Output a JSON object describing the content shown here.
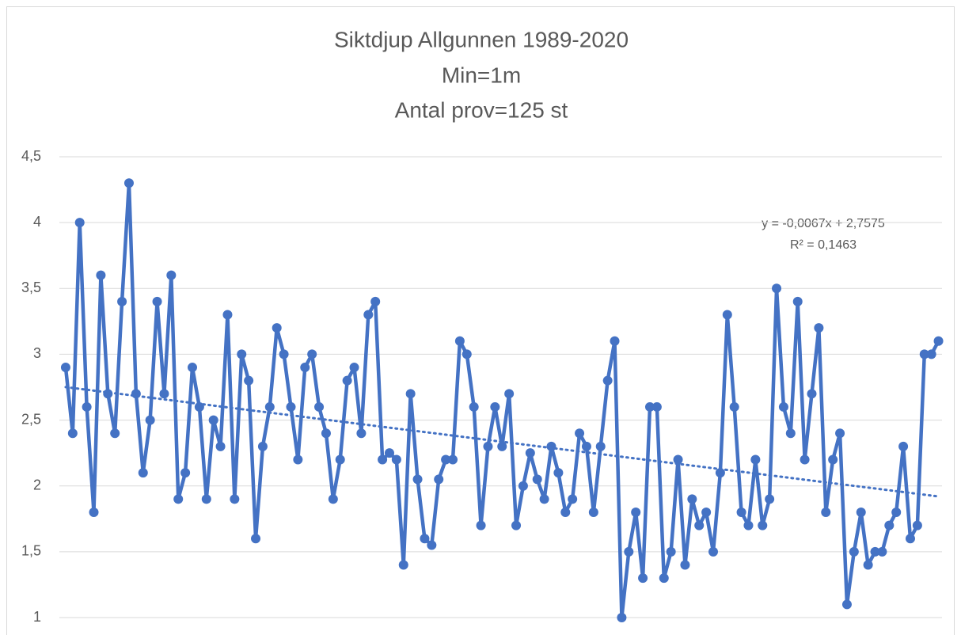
{
  "chart_data": {
    "type": "line",
    "title": [
      "Siktdjup Allgunnen 1989-2020",
      "Min=1m",
      "Antal prov=125 st"
    ],
    "categories": [
      null,
      null,
      null,
      null,
      null,
      null,
      null,
      null,
      null,
      null,
      null,
      null,
      null,
      null,
      null,
      null,
      null,
      null,
      null,
      null,
      null,
      null,
      null,
      null,
      null,
      null,
      null,
      null,
      null,
      null,
      null,
      null,
      null,
      null,
      null,
      null,
      null,
      null,
      null,
      null,
      null,
      null,
      null,
      null,
      null,
      null,
      null,
      null,
      null,
      null,
      null,
      null,
      null,
      null,
      null,
      null,
      null,
      null,
      null,
      null,
      null,
      null,
      null,
      null,
      null,
      null,
      null,
      null,
      null,
      null,
      null,
      null,
      null,
      null,
      null,
      null,
      null,
      null,
      null,
      null,
      null,
      null,
      null,
      null,
      null,
      null,
      null,
      null,
      null,
      null,
      null,
      null,
      null,
      null,
      null,
      null,
      null,
      null,
      null,
      null,
      null,
      null,
      null,
      null,
      null,
      null,
      null,
      null,
      null,
      null,
      null,
      null,
      null,
      null,
      null,
      null,
      null,
      null,
      null,
      null,
      null,
      null,
      null,
      null,
      null
    ],
    "series": [
      {
        "color": "#4472c4",
        "values": [
          2.9,
          2.4,
          4.0,
          2.6,
          1.8,
          3.6,
          2.7,
          2.4,
          3.4,
          4.3,
          2.7,
          2.1,
          2.5,
          3.4,
          2.7,
          3.6,
          1.9,
          2.1,
          2.9,
          2.6,
          1.9,
          2.5,
          2.3,
          3.3,
          1.9,
          3.0,
          2.8,
          1.6,
          2.3,
          2.6,
          3.2,
          3.0,
          2.6,
          2.2,
          2.9,
          3.0,
          2.6,
          2.4,
          1.9,
          2.2,
          2.8,
          2.9,
          2.4,
          3.3,
          3.4,
          2.2,
          2.25,
          2.2,
          1.4,
          2.7,
          2.05,
          1.6,
          1.55,
          2.05,
          2.2,
          2.2,
          3.1,
          3.0,
          2.6,
          1.7,
          2.3,
          2.6,
          2.3,
          2.7,
          1.7,
          2.0,
          2.25,
          2.05,
          1.9,
          2.3,
          2.1,
          1.8,
          1.9,
          2.4,
          2.3,
          1.8,
          2.3,
          2.8,
          3.1,
          1.0,
          1.5,
          1.8,
          1.3,
          2.6,
          2.6,
          1.3,
          1.5,
          2.2,
          1.4,
          1.9,
          1.7,
          1.8,
          1.5,
          2.1,
          3.3,
          2.6,
          1.8,
          1.7,
          2.2,
          1.7,
          1.9,
          3.5,
          2.6,
          2.4,
          3.4,
          2.2,
          2.7,
          3.2,
          1.8,
          2.2,
          2.4,
          1.1,
          1.5,
          1.8,
          1.4,
          1.5,
          1.5,
          1.7,
          1.8,
          2.3,
          1.6,
          1.7,
          3.0,
          3.0,
          3.1
        ]
      }
    ],
    "trendline": {
      "slope": -0.0067,
      "intercept": 2.7575,
      "color": "#4472c4",
      "equation": "y = -0,0067x + 2,7575",
      "r2": "R² = 0,1463"
    },
    "ylim": [
      1,
      4.5
    ],
    "yticks": [
      1,
      {
        "value": 1.5,
        "label": "1,5"
      },
      2,
      {
        "value": 2.5,
        "label": "2,5"
      },
      3,
      {
        "value": 3.5,
        "label": "3,5"
      },
      4,
      {
        "value": 4.5,
        "label": "4,5"
      }
    ],
    "grid": true
  }
}
